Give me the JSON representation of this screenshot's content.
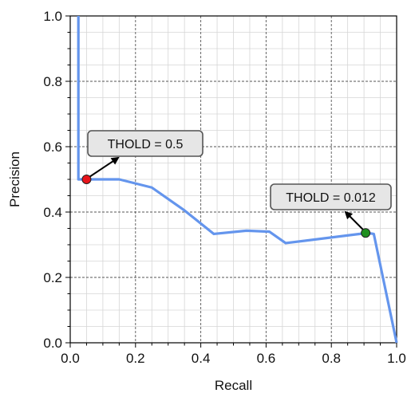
{
  "chart_data": {
    "type": "line",
    "xlabel": "Recall",
    "ylabel": "Precision",
    "xlim": [
      0.0,
      1.0
    ],
    "ylim": [
      0.0,
      1.0
    ],
    "xticks": [
      "0.0",
      "0.2",
      "0.4",
      "0.6",
      "0.8",
      "1.0"
    ],
    "yticks": [
      "0.0",
      "0.2",
      "0.4",
      "0.6",
      "0.8",
      "1.0"
    ],
    "grid": true,
    "series": [
      {
        "color": "#6495ed",
        "x": [
          0.025,
          0.025,
          0.05,
          0.15,
          0.25,
          0.35,
          0.44,
          0.54,
          0.61,
          0.66,
          0.91,
          0.93,
          1.0
        ],
        "y": [
          1.0,
          0.5,
          0.5,
          0.5,
          0.475,
          0.405,
          0.333,
          0.343,
          0.34,
          0.305,
          0.336,
          0.333,
          0.0
        ]
      }
    ],
    "annotations": [
      {
        "text": "THOLD = 0.5",
        "x": 0.05,
        "y": 0.5,
        "point_color": "#e8141b"
      },
      {
        "text": "THOLD = 0.012",
        "x": 0.905,
        "y": 0.336,
        "point_color": "#1f8f1f"
      }
    ]
  }
}
